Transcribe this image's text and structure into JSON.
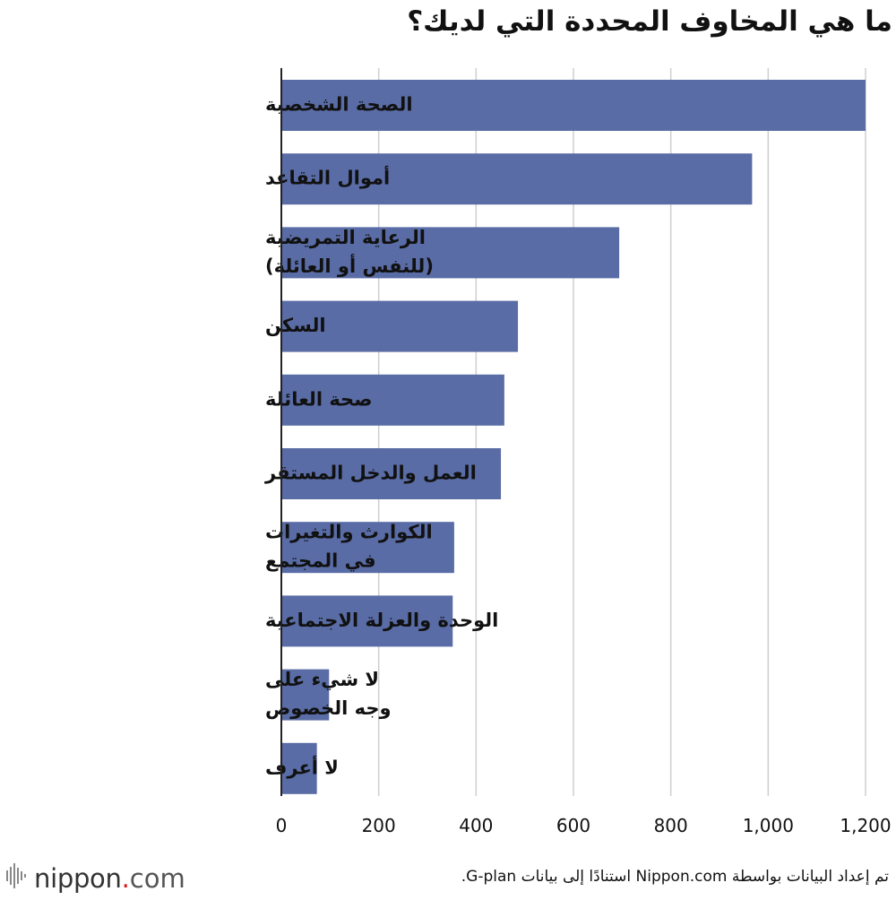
{
  "colors": {
    "bar": "#596ca5",
    "gridline": "#cfcfcf",
    "axis": "#222222",
    "logo_accent": "#d7191e"
  },
  "logo": {
    "word": "nippon",
    "dot": ".",
    "tld": "com",
    "icon": "nippon-sound-wave-icon"
  },
  "source_note": "تم إعداد البيانات بواسطة Nippon.com استنادًا إلى بيانات G-plan.",
  "chart_data": {
    "type": "bar",
    "orientation": "horizontal",
    "title": "ما هي المخاوف المحددة التي لديك؟",
    "categories": [
      [
        "الصحة الشخصية"
      ],
      [
        "أموال التقاعد"
      ],
      [
        "الرعاية التمريضية",
        "(للنفس أو العائلة)"
      ],
      [
        "السكن"
      ],
      [
        "صحة العائلة"
      ],
      [
        "العمل والدخل المستقر"
      ],
      [
        "الكوارث والتغيرات",
        "في المجتمع"
      ],
      [
        "الوحدة والعزلة الاجتماعية"
      ],
      [
        "لا شيء على",
        "وجه الخصوص"
      ],
      [
        "لا أعرف"
      ]
    ],
    "values": [
      1200,
      967,
      694,
      486,
      458,
      451,
      355,
      352,
      98,
      73
    ],
    "xlim": [
      0,
      1200
    ],
    "xticks": [
      0,
      200,
      400,
      600,
      800,
      1000,
      1200
    ],
    "xtick_labels": [
      "0",
      "200",
      "400",
      "600",
      "800",
      "1,000",
      "1,200"
    ],
    "grid": "vertical",
    "legend": "none"
  }
}
